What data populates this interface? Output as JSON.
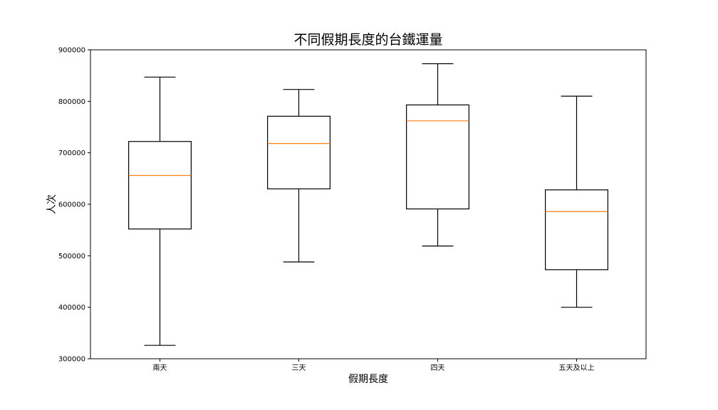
{
  "chart_data": {
    "type": "box",
    "title": "不同假期長度的台鐵運量",
    "xlabel": "假期長度",
    "ylabel": "人次",
    "categories": [
      "兩天",
      "三天",
      "四天",
      "五天及以上"
    ],
    "boxes": [
      {
        "category": "兩天",
        "whisker_low": 326000,
        "q1": 552000,
        "median": 656000,
        "q3": 722000,
        "whisker_high": 847000
      },
      {
        "category": "三天",
        "whisker_low": 488000,
        "q1": 630000,
        "median": 718000,
        "q3": 771000,
        "whisker_high": 823000
      },
      {
        "category": "四天",
        "whisker_low": 519000,
        "q1": 591000,
        "median": 762000,
        "q3": 793000,
        "whisker_high": 873000
      },
      {
        "category": "五天及以上",
        "whisker_low": 400000,
        "q1": 473000,
        "median": 586000,
        "q3": 628000,
        "whisker_high": 810000
      }
    ],
    "ylim": [
      300000,
      900000
    ],
    "yticks": [
      300000,
      400000,
      500000,
      600000,
      700000,
      800000,
      900000
    ],
    "grid": false,
    "colors": {
      "box": "#000000",
      "median": "#ff7f0e",
      "background": "#ffffff"
    }
  }
}
